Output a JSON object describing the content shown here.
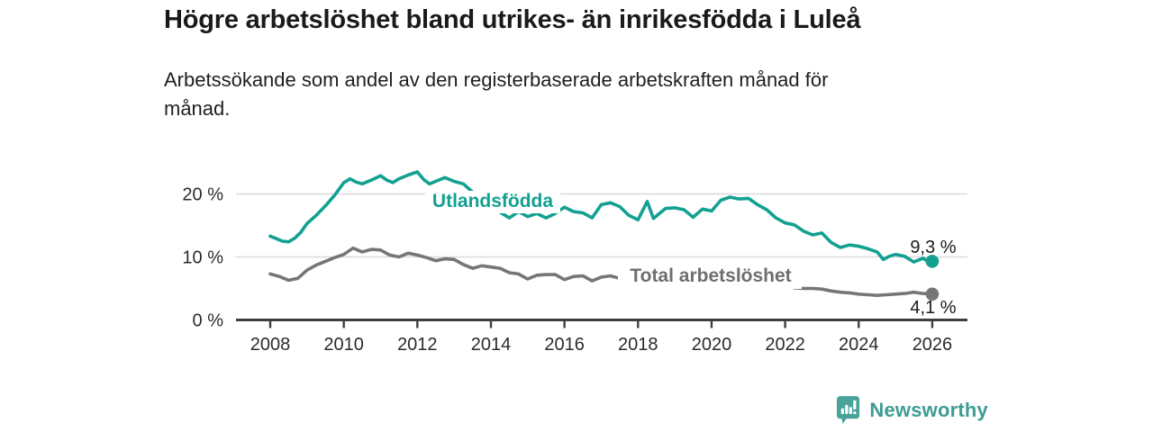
{
  "header": {
    "title": "Högre arbetslöshet bland utrikes- än inrikesfödda i Luleå",
    "subtitle_lines": [
      "Arbetssökande som andel av den registerbaserade arbetskraften månad för",
      "månad."
    ]
  },
  "footer": {
    "brand": "Newsworthy",
    "brand_color": "#3E9C94",
    "logo_icon": "bar-chart-speech-bubble-icon"
  },
  "chart_data": {
    "type": "line",
    "title": "Högre arbetslöshet bland utrikes- än inrikesfödda i Luleå",
    "subtitle": "Arbetssökande som andel av den registerbaserade arbetskraften månad för månad.",
    "unit": "%",
    "x_range": [
      2008,
      2026.1
    ],
    "y_range": [
      0,
      25
    ],
    "grid": "horizontal",
    "legend_position": "inline-labels",
    "x_ticks": [
      {
        "v": 2008,
        "label": "2008"
      },
      {
        "v": 2010,
        "label": "2010"
      },
      {
        "v": 2012,
        "label": "2012"
      },
      {
        "v": 2014,
        "label": "2014"
      },
      {
        "v": 2016,
        "label": "2016"
      },
      {
        "v": 2018,
        "label": "2018"
      },
      {
        "v": 2020,
        "label": "2020"
      },
      {
        "v": 2022,
        "label": "2022"
      },
      {
        "v": 2024,
        "label": "2024"
      },
      {
        "v": 2026,
        "label": "2026"
      }
    ],
    "y_ticks": [
      {
        "v": 0,
        "label": "0 %"
      },
      {
        "v": 10,
        "label": "10 %"
      },
      {
        "v": 20,
        "label": "20 %"
      }
    ],
    "colors": {
      "axis": "#3F3F3F",
      "grid": "#D9D9D9",
      "tick_text": "#2B2B2B",
      "value_text": "#1A1A1A"
    },
    "series": [
      {
        "id": "utlandsfodda",
        "name": "Utlandsfödda",
        "color": "#12A191",
        "end_label": "9,3 %",
        "end_value": 9.3,
        "points": [
          [
            2008.0,
            13.3
          ],
          [
            2008.17,
            12.9
          ],
          [
            2008.33,
            12.5
          ],
          [
            2008.5,
            12.4
          ],
          [
            2008.67,
            13.0
          ],
          [
            2008.83,
            13.9
          ],
          [
            2009.0,
            15.3
          ],
          [
            2009.25,
            16.6
          ],
          [
            2009.5,
            18.1
          ],
          [
            2009.75,
            19.8
          ],
          [
            2010.0,
            21.8
          ],
          [
            2010.17,
            22.4
          ],
          [
            2010.33,
            21.9
          ],
          [
            2010.5,
            21.6
          ],
          [
            2010.75,
            22.2
          ],
          [
            2011.0,
            22.9
          ],
          [
            2011.17,
            22.2
          ],
          [
            2011.33,
            21.8
          ],
          [
            2011.5,
            22.4
          ],
          [
            2011.75,
            23.0
          ],
          [
            2012.0,
            23.5
          ],
          [
            2012.17,
            22.3
          ],
          [
            2012.33,
            21.6
          ],
          [
            2012.5,
            22.0
          ],
          [
            2012.75,
            22.6
          ],
          [
            2013.0,
            22.0
          ],
          [
            2013.25,
            21.6
          ],
          [
            2013.5,
            20.3
          ],
          [
            2013.75,
            19.3
          ],
          [
            2014.0,
            18.2
          ],
          [
            2014.25,
            17.1
          ],
          [
            2014.5,
            16.2
          ],
          [
            2014.75,
            17.2
          ],
          [
            2015.0,
            16.4
          ],
          [
            2015.25,
            16.9
          ],
          [
            2015.5,
            16.2
          ],
          [
            2015.75,
            16.9
          ],
          [
            2016.0,
            17.9
          ],
          [
            2016.25,
            17.2
          ],
          [
            2016.5,
            17.0
          ],
          [
            2016.75,
            16.2
          ],
          [
            2017.0,
            18.3
          ],
          [
            2017.25,
            18.6
          ],
          [
            2017.5,
            18.0
          ],
          [
            2017.75,
            16.6
          ],
          [
            2018.0,
            15.9
          ],
          [
            2018.25,
            18.8
          ],
          [
            2018.42,
            16.1
          ],
          [
            2018.58,
            16.9
          ],
          [
            2018.75,
            17.7
          ],
          [
            2019.0,
            17.8
          ],
          [
            2019.25,
            17.5
          ],
          [
            2019.5,
            16.3
          ],
          [
            2019.75,
            17.6
          ],
          [
            2020.0,
            17.3
          ],
          [
            2020.25,
            19.0
          ],
          [
            2020.5,
            19.5
          ],
          [
            2020.75,
            19.2
          ],
          [
            2021.0,
            19.3
          ],
          [
            2021.25,
            18.3
          ],
          [
            2021.5,
            17.5
          ],
          [
            2021.75,
            16.2
          ],
          [
            2022.0,
            15.4
          ],
          [
            2022.25,
            15.1
          ],
          [
            2022.5,
            14.1
          ],
          [
            2022.75,
            13.5
          ],
          [
            2023.0,
            13.8
          ],
          [
            2023.25,
            12.3
          ],
          [
            2023.5,
            11.5
          ],
          [
            2023.75,
            11.9
          ],
          [
            2024.0,
            11.7
          ],
          [
            2024.25,
            11.3
          ],
          [
            2024.5,
            10.8
          ],
          [
            2024.67,
            9.6
          ],
          [
            2024.83,
            10.1
          ],
          [
            2025.0,
            10.4
          ],
          [
            2025.25,
            10.1
          ],
          [
            2025.5,
            9.2
          ],
          [
            2025.75,
            9.8
          ],
          [
            2025.9,
            9.2
          ],
          [
            2026.0,
            9.3
          ]
        ]
      },
      {
        "id": "total",
        "name": "Total arbetslöshet",
        "color": "#767676",
        "label_color": "#6E6E6E",
        "end_label": "4,1 %",
        "end_value": 4.1,
        "points": [
          [
            2008.0,
            7.3
          ],
          [
            2008.25,
            6.9
          ],
          [
            2008.5,
            6.3
          ],
          [
            2008.75,
            6.6
          ],
          [
            2009.0,
            7.9
          ],
          [
            2009.25,
            8.7
          ],
          [
            2009.5,
            9.3
          ],
          [
            2009.75,
            9.9
          ],
          [
            2010.0,
            10.4
          ],
          [
            2010.25,
            11.4
          ],
          [
            2010.5,
            10.8
          ],
          [
            2010.75,
            11.2
          ],
          [
            2011.0,
            11.1
          ],
          [
            2011.25,
            10.3
          ],
          [
            2011.5,
            10.0
          ],
          [
            2011.75,
            10.6
          ],
          [
            2012.0,
            10.3
          ],
          [
            2012.25,
            9.9
          ],
          [
            2012.5,
            9.4
          ],
          [
            2012.75,
            9.7
          ],
          [
            2013.0,
            9.6
          ],
          [
            2013.25,
            8.8
          ],
          [
            2013.5,
            8.2
          ],
          [
            2013.75,
            8.6
          ],
          [
            2014.0,
            8.4
          ],
          [
            2014.25,
            8.2
          ],
          [
            2014.5,
            7.5
          ],
          [
            2014.75,
            7.3
          ],
          [
            2015.0,
            6.5
          ],
          [
            2015.25,
            7.1
          ],
          [
            2015.5,
            7.2
          ],
          [
            2015.75,
            7.2
          ],
          [
            2016.0,
            6.4
          ],
          [
            2016.25,
            6.9
          ],
          [
            2016.5,
            7.0
          ],
          [
            2016.75,
            6.2
          ],
          [
            2017.0,
            6.8
          ],
          [
            2017.25,
            7.0
          ],
          [
            2017.5,
            6.6
          ],
          [
            2017.75,
            6.0
          ],
          [
            2018.0,
            6.3
          ],
          [
            2018.25,
            6.5
          ],
          [
            2018.5,
            6.2
          ],
          [
            2018.75,
            6.4
          ],
          [
            2019.0,
            6.3
          ],
          [
            2019.25,
            6.1
          ],
          [
            2019.5,
            5.9
          ],
          [
            2019.75,
            6.2
          ],
          [
            2020.0,
            6.5
          ],
          [
            2020.25,
            7.2
          ],
          [
            2020.5,
            7.4
          ],
          [
            2020.75,
            7.2
          ],
          [
            2021.0,
            6.9
          ],
          [
            2021.25,
            6.5
          ],
          [
            2021.5,
            6.1
          ],
          [
            2021.75,
            5.8
          ],
          [
            2022.0,
            5.5
          ],
          [
            2022.25,
            5.1
          ],
          [
            2022.5,
            5.0
          ],
          [
            2022.75,
            5.0
          ],
          [
            2023.0,
            4.9
          ],
          [
            2023.25,
            4.6
          ],
          [
            2023.5,
            4.4
          ],
          [
            2023.75,
            4.3
          ],
          [
            2024.0,
            4.1
          ],
          [
            2024.25,
            4.0
          ],
          [
            2024.5,
            3.9
          ],
          [
            2024.75,
            4.0
          ],
          [
            2025.0,
            4.1
          ],
          [
            2025.25,
            4.2
          ],
          [
            2025.5,
            4.4
          ],
          [
            2025.75,
            4.2
          ],
          [
            2026.0,
            4.1
          ]
        ]
      }
    ]
  }
}
